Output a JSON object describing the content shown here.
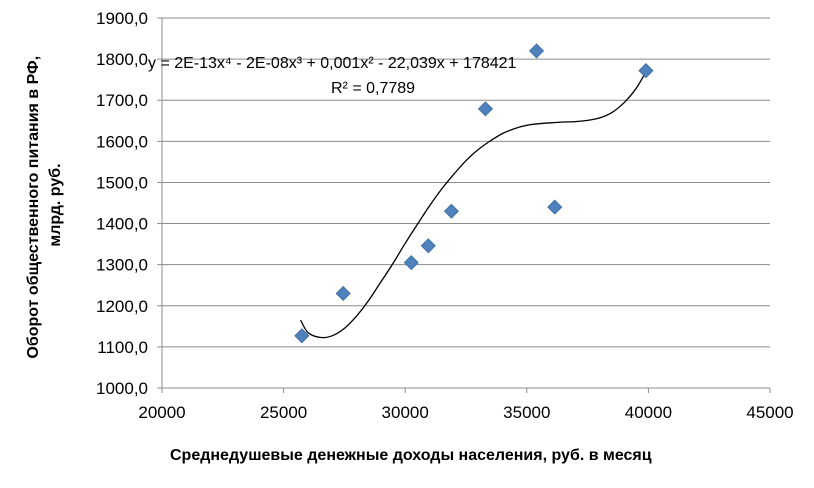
{
  "chart_data": {
    "type": "scatter",
    "title": "",
    "xlabel": "Среднедушевые денежные доходы населения, руб. в месяц",
    "ylabel_line1": "Оборот общественного питания в РФ,",
    "ylabel_line2": "млрд. руб.",
    "xlim": [
      20000,
      45000
    ],
    "ylim": [
      1000,
      1900
    ],
    "x_ticks": [
      20000,
      25000,
      30000,
      35000,
      40000,
      45000
    ],
    "x_tick_labels": [
      "20000",
      "25000",
      "30000",
      "35000",
      "40000",
      "45000"
    ],
    "y_ticks": [
      1000,
      1100,
      1200,
      1300,
      1400,
      1500,
      1600,
      1700,
      1800,
      1900
    ],
    "y_tick_labels": [
      "1000,0",
      "1100,0",
      "1200,0",
      "1300,0",
      "1400,0",
      "1500,0",
      "1600,0",
      "1700,0",
      "1800,0",
      "1900,0"
    ],
    "grid": "horizontal",
    "points": [
      {
        "x": 25750,
        "y": 1127
      },
      {
        "x": 27450,
        "y": 1230
      },
      {
        "x": 30250,
        "y": 1305
      },
      {
        "x": 30950,
        "y": 1346
      },
      {
        "x": 31900,
        "y": 1430
      },
      {
        "x": 33300,
        "y": 1679
      },
      {
        "x": 35400,
        "y": 1820
      },
      {
        "x": 36150,
        "y": 1440
      },
      {
        "x": 39900,
        "y": 1772
      }
    ],
    "trendline": {
      "type": "polynomial",
      "order": 4,
      "x_range": [
        25700,
        39950
      ],
      "curve": [
        {
          "x": 25700,
          "y": 1165
        },
        {
          "x": 26000,
          "y": 1135
        },
        {
          "x": 26500,
          "y": 1123
        },
        {
          "x": 27000,
          "y": 1127
        },
        {
          "x": 27500,
          "y": 1145
        },
        {
          "x": 28000,
          "y": 1175
        },
        {
          "x": 28500,
          "y": 1213
        },
        {
          "x": 29000,
          "y": 1258
        },
        {
          "x": 29500,
          "y": 1303
        },
        {
          "x": 30000,
          "y": 1352
        },
        {
          "x": 30500,
          "y": 1398
        },
        {
          "x": 31000,
          "y": 1443
        },
        {
          "x": 31500,
          "y": 1484
        },
        {
          "x": 32000,
          "y": 1520
        },
        {
          "x": 32500,
          "y": 1553
        },
        {
          "x": 33000,
          "y": 1580
        },
        {
          "x": 33500,
          "y": 1601
        },
        {
          "x": 34000,
          "y": 1619
        },
        {
          "x": 34500,
          "y": 1631
        },
        {
          "x": 35000,
          "y": 1639
        },
        {
          "x": 35500,
          "y": 1643
        },
        {
          "x": 36000,
          "y": 1645
        },
        {
          "x": 36500,
          "y": 1647
        },
        {
          "x": 37000,
          "y": 1648
        },
        {
          "x": 37500,
          "y": 1651
        },
        {
          "x": 38000,
          "y": 1657
        },
        {
          "x": 38500,
          "y": 1670
        },
        {
          "x": 39000,
          "y": 1694
        },
        {
          "x": 39500,
          "y": 1729
        },
        {
          "x": 39950,
          "y": 1775
        }
      ],
      "equation": "y = 2E-13x⁴ - 2E-08x³ + 0,001x² - 22,039x + 178421",
      "r_squared": "R² = 0,7789"
    },
    "colors": {
      "marker": "#4f81bd",
      "marker_stroke": "#3a6aa3",
      "trendline": "#000000",
      "grid": "#8c8c8c",
      "axis": "#8c8c8c"
    }
  }
}
